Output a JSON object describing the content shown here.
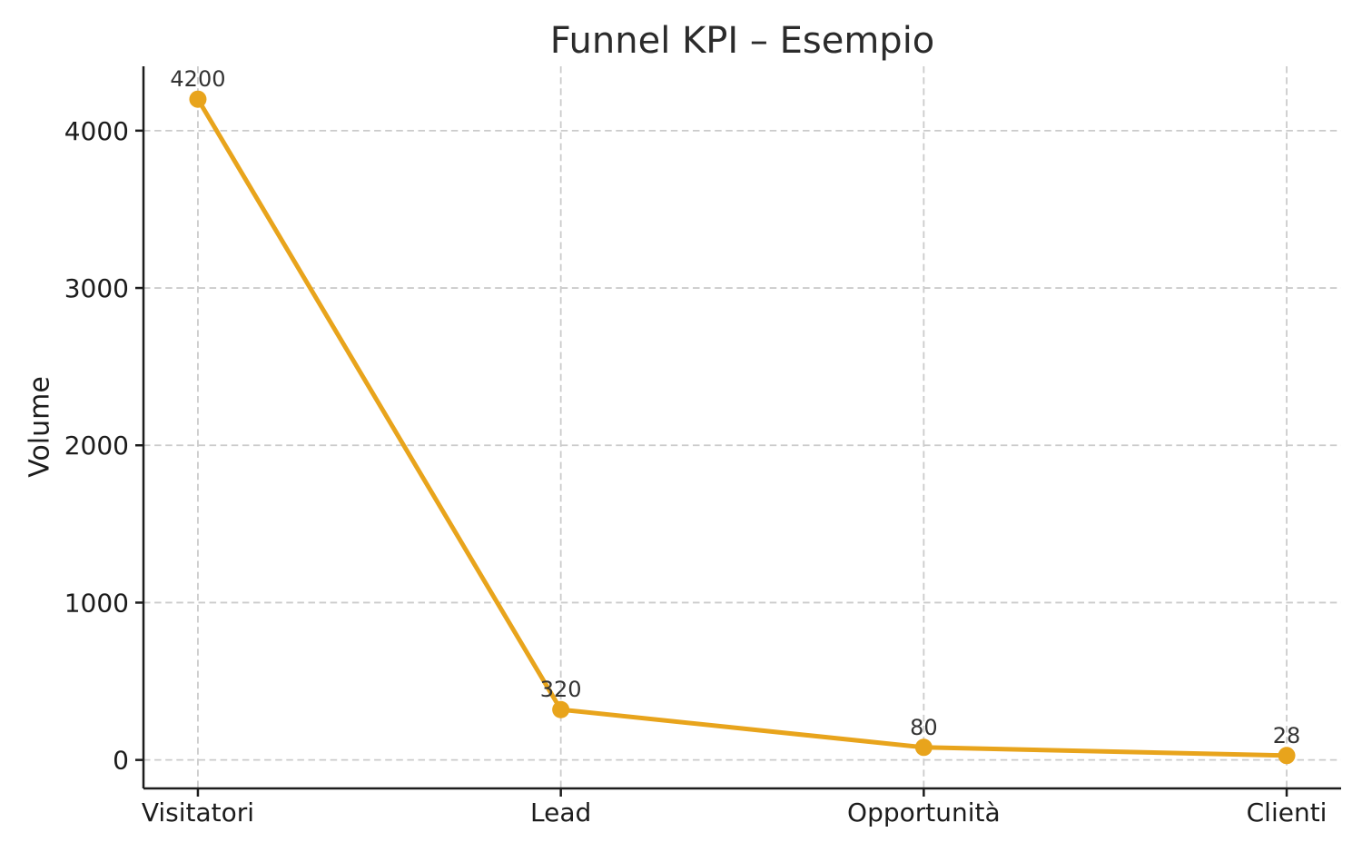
{
  "chart_data": {
    "type": "line",
    "title": "Funnel KPI – Esempio",
    "ylabel": "Volume",
    "xlabel": "",
    "categories": [
      "Visitatori",
      "Lead",
      "Opportunità",
      "Clienti"
    ],
    "series": [
      {
        "name": "Volume",
        "values": [
          4200,
          320,
          80,
          28
        ],
        "point_labels": [
          "4200",
          "320",
          "80",
          "28"
        ]
      }
    ],
    "yticks": [
      0,
      1000,
      2000,
      3000,
      4000
    ],
    "ylim": [
      -181,
      4409
    ],
    "xlim": [
      -0.15,
      3.15
    ],
    "grid": true,
    "grid_style": "dashed",
    "legend_position": "none",
    "colors": {
      "line": "#E8A41C",
      "marker": "#E8A41C",
      "grid": "#CBCBCB",
      "axis": "#1C1C1C",
      "tick_text": "#1C1C1C",
      "point_label_text": "#333333",
      "title_text": "#2B2B2B",
      "background": "#FFFFFF"
    }
  }
}
